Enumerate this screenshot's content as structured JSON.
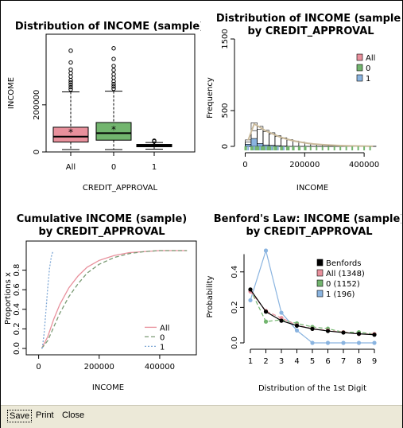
{
  "toolbar": {
    "save": "Save",
    "print": "Print",
    "close": "Close"
  },
  "colors": {
    "all": "#e8909c",
    "zero": "#72b56e",
    "one": "#8ab4e0",
    "benford": "#000000",
    "hist_fill": "#ffffff",
    "density": "#c9b99a"
  },
  "chart_data": [
    {
      "type": "boxplot",
      "title": "Distribution of INCOME (sample)",
      "xlabel": "CREDIT_APPROVAL",
      "ylabel": "INCOME",
      "categories": [
        "All",
        "0",
        "1"
      ],
      "yticks": [
        "0",
        "200000"
      ],
      "ylim": [
        0,
        500000
      ],
      "series": [
        {
          "name": "All",
          "min": 10000,
          "q1": 42000,
          "median": 65000,
          "q3": 105000,
          "whisker_high": 255000,
          "mean": 82000,
          "outliers": [
            265000,
            275000,
            285000,
            295000,
            305000,
            320000,
            335000,
            350000,
            380000,
            430000
          ]
        },
        {
          "name": "0",
          "min": 10000,
          "q1": 50000,
          "median": 80000,
          "q3": 125000,
          "whisker_high": 258000,
          "mean": 95000,
          "outliers": [
            268000,
            278000,
            288000,
            300000,
            315000,
            330000,
            348000,
            365000,
            395000,
            440000
          ]
        },
        {
          "name": "1",
          "min": 12000,
          "q1": 22000,
          "median": 27000,
          "q3": 32000,
          "whisker_high": 40000,
          "mean": 28000,
          "outliers": [
            45000,
            48000
          ]
        }
      ]
    },
    {
      "type": "histogram",
      "title": "Distribution of INCOME (sample)",
      "subtitle": "by CREDIT_APPROVAL",
      "xlabel": "INCOME",
      "ylabel": "Frequency",
      "xticks": [
        0,
        200000,
        400000
      ],
      "xtick_labels": [
        "0",
        "200000",
        "400000"
      ],
      "yticks": [
        0,
        500,
        1500
      ],
      "xlim": [
        -20000,
        520000
      ],
      "ylim": [
        0,
        1500
      ],
      "legend": [
        "All",
        "0",
        "1"
      ],
      "bin_width": 20000,
      "bins_all": [
        90,
        330,
        280,
        225,
        190,
        150,
        120,
        95,
        75,
        60,
        45,
        35,
        28,
        22,
        17,
        13,
        10,
        8,
        6,
        4,
        3,
        2
      ],
      "bins_zero": [
        60,
        220,
        240,
        205,
        175,
        140,
        110,
        90,
        70,
        55,
        42,
        33,
        26,
        20,
        16,
        12,
        9,
        7,
        5,
        4,
        3,
        2
      ],
      "bins_one": [
        30,
        110,
        40,
        20,
        15,
        10,
        5
      ]
    },
    {
      "type": "line",
      "title": "Cumulative INCOME (sample)",
      "subtitle": "by CREDIT_APPROVAL",
      "xlabel": "INCOME",
      "ylabel": "Proportions x",
      "xticks": [
        0,
        200000,
        400000
      ],
      "xtick_labels": [
        "0",
        "200000",
        "400000"
      ],
      "yticks": [
        0.0,
        0.2,
        0.4,
        0.6,
        0.8
      ],
      "ytick_labels": [
        "0.0",
        "0.2",
        "0.4",
        "0.6",
        "0.8"
      ],
      "xlim": [
        -20000,
        500000
      ],
      "ylim": [
        0,
        1
      ],
      "legend": [
        "All",
        "0",
        "1"
      ],
      "series": [
        {
          "name": "All",
          "x": [
            10000,
            30000,
            50000,
            70000,
            100000,
            130000,
            160000,
            200000,
            250000,
            300000,
            350000,
            400000,
            450000,
            490000
          ],
          "y": [
            0,
            0.12,
            0.3,
            0.45,
            0.62,
            0.74,
            0.83,
            0.9,
            0.95,
            0.98,
            0.99,
            1.0,
            1.0,
            1.0
          ]
        },
        {
          "name": "0",
          "x": [
            10000,
            30000,
            50000,
            70000,
            100000,
            130000,
            160000,
            200000,
            250000,
            300000,
            350000,
            400000,
            450000,
            490000
          ],
          "y": [
            0,
            0.08,
            0.22,
            0.36,
            0.53,
            0.66,
            0.77,
            0.86,
            0.93,
            0.97,
            0.99,
            1.0,
            1.0,
            1.0
          ]
        },
        {
          "name": "1",
          "x": [
            12000,
            18000,
            24000,
            30000,
            36000,
            42000,
            48000
          ],
          "y": [
            0,
            0.15,
            0.38,
            0.62,
            0.82,
            0.94,
            1.0
          ]
        }
      ]
    },
    {
      "type": "line",
      "title": "Benford's Law: INCOME (sample)",
      "subtitle": "by CREDIT_APPROVAL",
      "xlabel": "Distribution of the 1st Digit",
      "ylabel": "Probability",
      "categories": [
        "1",
        "2",
        "3",
        "4",
        "5",
        "6",
        "7",
        "8",
        "9"
      ],
      "yticks": [
        0.0,
        0.2,
        0.4
      ],
      "ytick_labels": [
        "0.0",
        "0.2",
        "0.4"
      ],
      "ylim": [
        0,
        0.52
      ],
      "legend": [
        "Benfords",
        "All (1348)",
        "0 (1152)",
        "1 (196)"
      ],
      "series": [
        {
          "name": "Benfords",
          "values": [
            0.301,
            0.176,
            0.125,
            0.097,
            0.079,
            0.067,
            0.058,
            0.051,
            0.046
          ]
        },
        {
          "name": "All (1348)",
          "values": [
            0.29,
            0.18,
            0.14,
            0.1,
            0.08,
            0.07,
            0.06,
            0.05,
            0.05
          ]
        },
        {
          "name": "0 (1152)",
          "values": [
            0.3,
            0.12,
            0.13,
            0.11,
            0.09,
            0.08,
            0.06,
            0.06,
            0.05
          ]
        },
        {
          "name": "1 (196)",
          "values": [
            0.24,
            0.52,
            0.17,
            0.07,
            0.0,
            0.0,
            0.0,
            0.0,
            0.0
          ]
        }
      ]
    }
  ]
}
